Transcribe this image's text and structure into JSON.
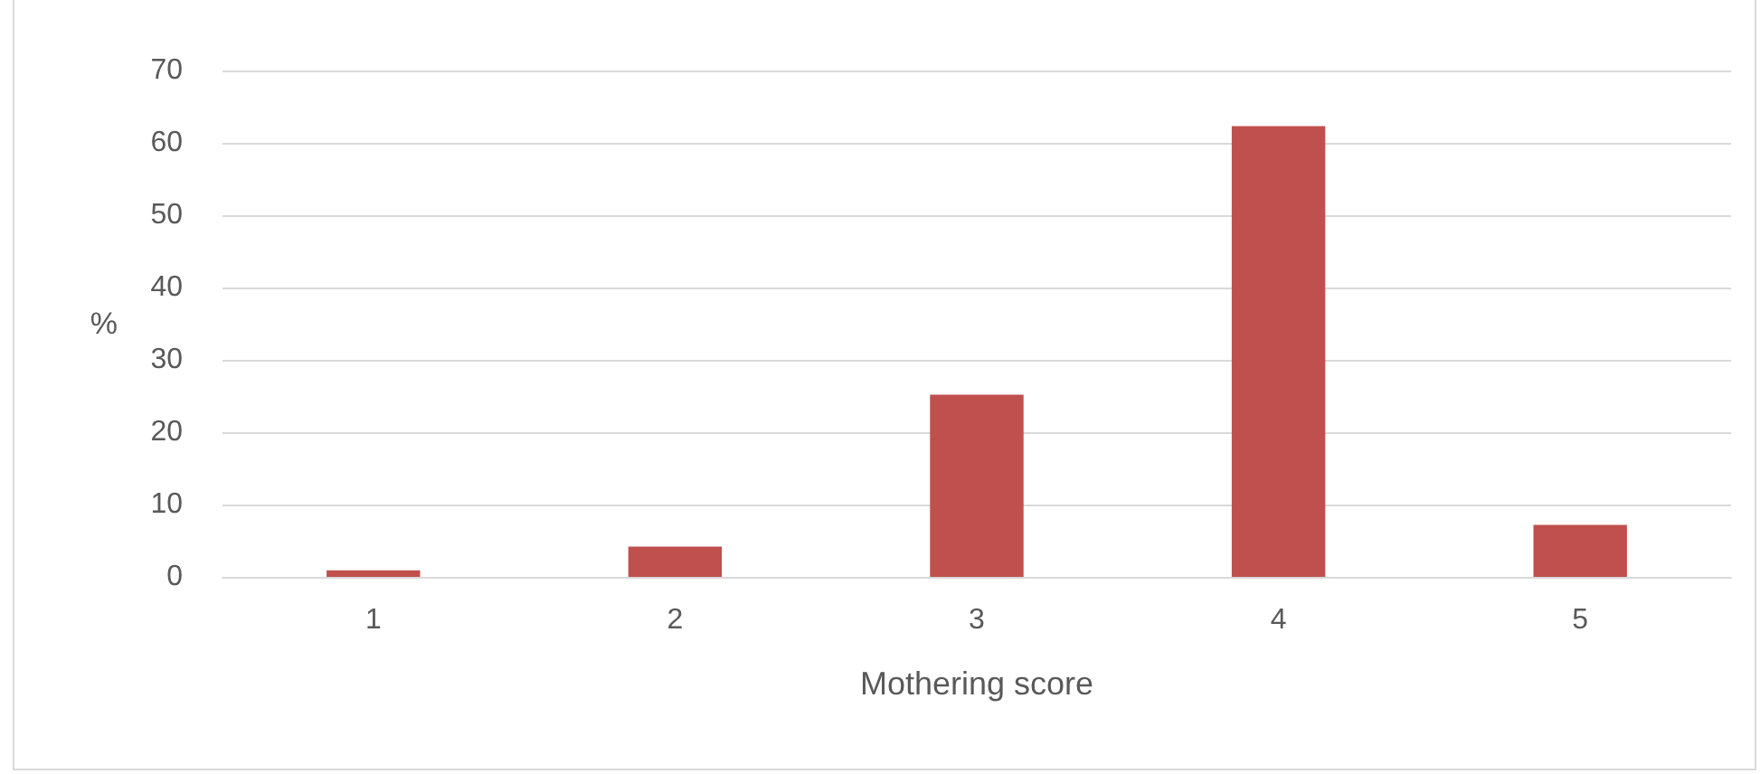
{
  "chart_data": {
    "type": "bar",
    "xlabel": "Mothering score",
    "ylabel": "%",
    "categories": [
      "1",
      "2",
      "3",
      "4",
      "5"
    ],
    "values": [
      0.9,
      4.2,
      25.2,
      62.3,
      7.2
    ],
    "color": "#c0504d",
    "ylim": [
      0,
      70
    ],
    "yticks": [
      0,
      10,
      20,
      30,
      40,
      50,
      60,
      70
    ],
    "grid": "y"
  }
}
